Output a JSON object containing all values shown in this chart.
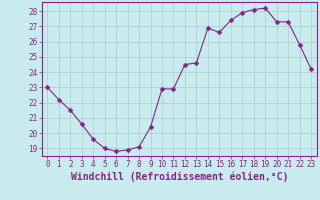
{
  "x": [
    0,
    1,
    2,
    3,
    4,
    5,
    6,
    7,
    8,
    9,
    10,
    11,
    12,
    13,
    14,
    15,
    16,
    17,
    18,
    19,
    20,
    21,
    22,
    23
  ],
  "y": [
    23,
    22.2,
    21.5,
    20.6,
    19.6,
    19.0,
    18.8,
    18.9,
    19.1,
    20.4,
    22.9,
    22.9,
    24.5,
    24.6,
    26.9,
    26.6,
    27.4,
    27.9,
    28.1,
    28.2,
    27.3,
    27.3,
    25.8,
    24.2
  ],
  "line_color": "#882288",
  "marker": "D",
  "marker_size": 2.5,
  "bg_color": "#c8ecee",
  "grid_color": "#aacccc",
  "xlabel": "Windchill (Refroidissement éolien,°C)",
  "ylim_min": 18.5,
  "ylim_max": 28.6,
  "xlim_min": -0.5,
  "xlim_max": 23.5,
  "yticks": [
    19,
    20,
    21,
    22,
    23,
    24,
    25,
    26,
    27,
    28
  ],
  "xticks": [
    0,
    1,
    2,
    3,
    4,
    5,
    6,
    7,
    8,
    9,
    10,
    11,
    12,
    13,
    14,
    15,
    16,
    17,
    18,
    19,
    20,
    21,
    22,
    23
  ],
  "tick_fontsize": 5.5,
  "xlabel_fontsize": 7.0,
  "tick_color": "#882288",
  "label_color": "#882288",
  "spine_color": "#882288"
}
